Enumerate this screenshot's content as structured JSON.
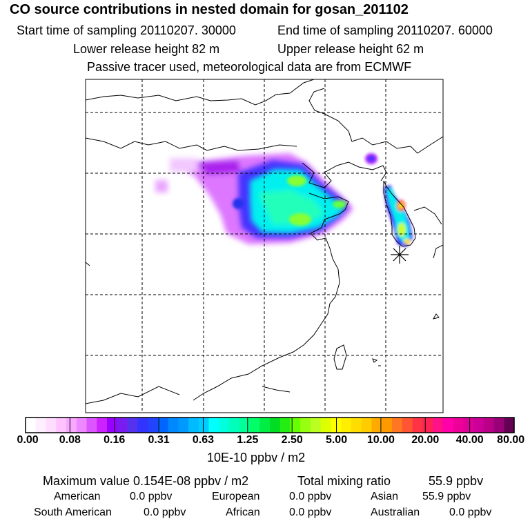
{
  "header": {
    "title": "CO  source contributions in nested domain for gosan_201102",
    "start_time": "Start time of sampling 20110207. 30000",
    "end_time": "End time of sampling 20110207. 60000",
    "lower_height": "Lower release height   82 m",
    "upper_height": "Upper release height   62 m",
    "tracer_note": "Passive tracer used, meteorological data are from ECMWF"
  },
  "colorbar": {
    "ticks": [
      "0.00",
      "0.08",
      "0.16",
      "0.31",
      "0.63",
      "1.25",
      "2.50",
      "5.00",
      "10.00",
      "20.00",
      "40.00",
      "80.00"
    ],
    "units": "10E-10 ppbv / m2",
    "colors": [
      "#ffffff",
      "#ffeeff",
      "#ffddff",
      "#ffc4ff",
      "#f8a8ff",
      "#ee88ff",
      "#dd55ff",
      "#cc22ff",
      "#9900ff",
      "#7a1cf0",
      "#5533ee",
      "#3333ff",
      "#2244ff",
      "#0066ff",
      "#0088ff",
      "#0099ff",
      "#00bbff",
      "#00ccff",
      "#00ffff",
      "#00ffdd",
      "#00ffbb",
      "#00ff99",
      "#00ff66",
      "#00ee44",
      "#00dd22",
      "#22ee11",
      "#66ff00",
      "#99ff11",
      "#bbff22",
      "#ddff00",
      "#ffff00",
      "#ffee00",
      "#ffdd00",
      "#ffcc00",
      "#ffaa00",
      "#ff9900",
      "#ff7722",
      "#ff5533",
      "#ff3344",
      "#ff2255",
      "#ff1188",
      "#ff00aa",
      "#ee0099",
      "#dd0099",
      "#cc0099",
      "#bb0088",
      "#990077",
      "#660055"
    ]
  },
  "stats": {
    "maximum_value": "Maximum value  0.154E-08 ppbv / m2",
    "total_mixing_ratio_label": "Total mixing ratio",
    "total_mixing_ratio_value": "55.9 ppbv",
    "american_label": "American",
    "american_value": "0.0 ppbv",
    "european_label": "European",
    "european_value": "0.0 ppbv",
    "asian_label": "Asian",
    "asian_value": "55.9 ppbv",
    "south_american_label": "South American",
    "south_american_value": "0.0 ppbv",
    "african_label": "African",
    "african_value": "0.0 ppbv",
    "australian_label": "Australian",
    "australian_value": "0.0 ppbv"
  }
}
